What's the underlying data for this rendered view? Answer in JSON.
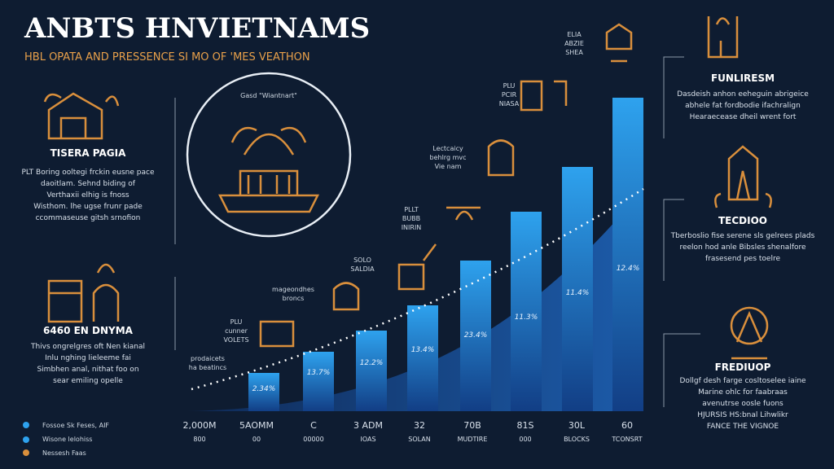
{
  "header": {
    "title": "ANBTS HNVIETNAMS",
    "subtitle": "HBL OPATA AND PRESSENCE SI MO OF 'MES VEATHON"
  },
  "left_panels": [
    {
      "title": "TISERA PAGIA",
      "lines": [
        "PLT Boring ooltegi frckin eusne pace",
        "daoitlam. Sehnd biding of",
        "Verthaxii elhig is fnoss",
        "Wisthom. lhe ugse frunr pade",
        "ccommaseuse gitsh srnofion"
      ]
    },
    {
      "title": "6460 EN DNYMA",
      "lines": [
        "Thivs ongrelgres oft Nen kianal",
        "Inlu nghing lieleeme fai",
        "Simbhen anal, nithat foo on",
        "sear emiling opelle"
      ]
    }
  ],
  "circle_label": "Gasd \"Wiantnart\"",
  "annotations": [
    [
      "ELIA",
      "ABZIE",
      "SHEA"
    ],
    [
      "PLU",
      "PCIR",
      "NIASA"
    ],
    [
      "Lectcaicy",
      "behlrg mvc",
      "Vie nam"
    ],
    [
      "PLLT",
      "BUBB",
      "INIRIN"
    ],
    [
      "SOLO",
      "SALDIA"
    ],
    [
      "mageondhes",
      "broncs"
    ],
    [
      "PLU",
      "cunner",
      "VOLETS"
    ],
    [
      "prodaicets",
      "ha beatincs"
    ]
  ],
  "bar_labels": [
    "2.34%",
    "13.7%",
    "12.2%",
    "13.4%",
    "23.4%",
    "11.3%",
    "11.4%",
    "12.4%"
  ],
  "x_labels": [
    [
      "2,000M",
      "800"
    ],
    [
      "5AOMM",
      "00"
    ],
    [
      "C",
      "00000"
    ],
    [
      "3 ADM",
      "IOAS"
    ],
    [
      "32",
      "SOLAN"
    ],
    [
      "70B",
      "MUDTIRE"
    ],
    [
      "81S",
      "000"
    ],
    [
      "30L",
      "BLOCKS"
    ],
    [
      "60",
      "TCONSRT"
    ]
  ],
  "right_panels": [
    {
      "title": "FUNLIRESM",
      "lines": [
        "Dasdeish anhon eeheguin abrigeice",
        "abhele fat fordbodie ifachralign",
        "Hearaecease dheil wrent fort"
      ]
    },
    {
      "title": "TECDIOO",
      "lines": [
        "Tberboslio fise serene sls gelrees plads",
        "reelon hod anle Bibsles shenalfore",
        "frasesend pes toelre"
      ]
    },
    {
      "title": "FREDIUOP",
      "lines": [
        "Dollgf desh farge cosltoselee iaine",
        "Marine ohlc for faabraas",
        "avenutrse oosle fuons",
        "HJURSIS HS:bnal Lihwlikr",
        "FANCE THE VIGNOE"
      ]
    }
  ],
  "legend": [
    "Fossoe Sk Feses, AIF",
    "Wisone lelohiss",
    "Nessesh Faas"
  ]
}
